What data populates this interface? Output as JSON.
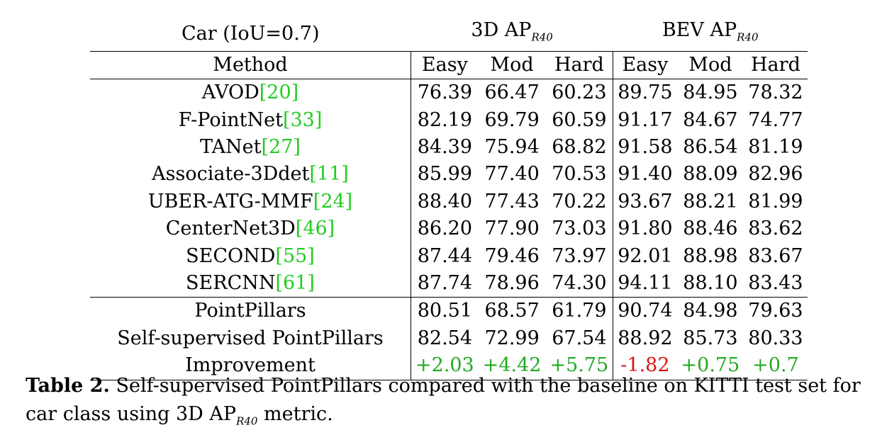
{
  "header": {
    "group_label": "Car (IoU=0.7)",
    "ap3d_label": "3D AP",
    "bev_label": "BEV AP",
    "subscript": "R40",
    "method_label": "Method",
    "cols": [
      "Easy",
      "Mod",
      "Hard",
      "Easy",
      "Mod",
      "Hard"
    ]
  },
  "rows": [
    {
      "method": "AVOD",
      "cite": "[20]",
      "vals": [
        "76.39",
        "66.47",
        "60.23",
        "89.75",
        "84.95",
        "78.32"
      ]
    },
    {
      "method": "F-PointNet",
      "cite": "[33]",
      "vals": [
        "82.19",
        "69.79",
        "60.59",
        "91.17",
        "84.67",
        "74.77"
      ]
    },
    {
      "method": "TANet",
      "cite": "[27]",
      "vals": [
        "84.39",
        "75.94",
        "68.82",
        "91.58",
        "86.54",
        "81.19"
      ]
    },
    {
      "method": "Associate-3Ddet",
      "cite": "[11]",
      "vals": [
        "85.99",
        "77.40",
        "70.53",
        "91.40",
        "88.09",
        "82.96"
      ]
    },
    {
      "method": "UBER-ATG-MMF",
      "cite": "[24]",
      "vals": [
        "88.40",
        "77.43",
        "70.22",
        "93.67",
        "88.21",
        "81.99"
      ]
    },
    {
      "method": "CenterNet3D",
      "cite": "[46]",
      "vals": [
        "86.20",
        "77.90",
        "73.03",
        "91.80",
        "88.46",
        "83.62"
      ]
    },
    {
      "method": "SECOND",
      "cite": "[55]",
      "vals": [
        "87.44",
        "79.46",
        "73.97",
        "92.01",
        "88.98",
        "83.67"
      ]
    },
    {
      "method": "SERCNN",
      "cite": "[61]",
      "vals": [
        "87.74",
        "78.96",
        "74.30",
        "94.11",
        "88.10",
        "83.43"
      ]
    }
  ],
  "baseline": {
    "method": "PointPillars",
    "vals": [
      "80.51",
      "68.57",
      "61.79",
      "90.74",
      "84.98",
      "79.63"
    ]
  },
  "ours": {
    "method": "Self-supervised PointPillars",
    "vals": [
      "82.54",
      "72.99",
      "67.54",
      "88.92",
      "85.73",
      "80.33"
    ]
  },
  "improvement": {
    "method": "Improvement",
    "vals": [
      "+2.03",
      "+4.42",
      "+5.75",
      "-1.82",
      "+0.75",
      "+0.7"
    ]
  },
  "caption": {
    "label": "Table 2.",
    "text": " Self-supervised PointPillars compared with the baseline on KITTI test set for car class using 3D AP",
    "end": " metric."
  },
  "colors": {
    "citation": "#22cc22",
    "positive": "#22aa22",
    "negative": "#dd1111"
  }
}
